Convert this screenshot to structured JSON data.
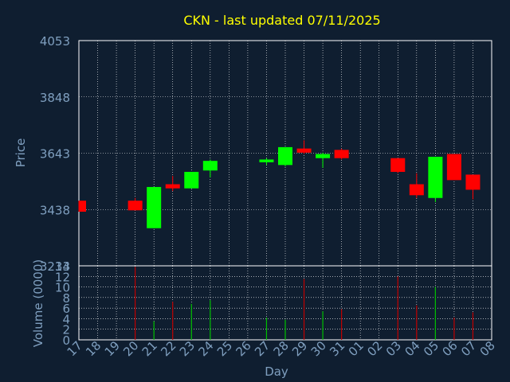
{
  "colors": {
    "background": "#0f1e30",
    "title": "#ffff00",
    "axis_text": "#7f9fbf",
    "frame": "#ffffff",
    "grid": "#ffffff",
    "up": "#00ff00",
    "down": "#ff0000",
    "volume_up": "#00c000",
    "volume_down": "#c00000"
  },
  "chart_data": [
    {
      "type": "candlestick",
      "title": "CKN - last updated 07/11/2025",
      "ylabel": "Price",
      "ylim": [
        3233,
        4053
      ],
      "yticks": [
        3233,
        3438,
        3643,
        3848,
        4053
      ],
      "grid": true,
      "x": [
        "17",
        "18",
        "19",
        "20",
        "21",
        "22",
        "23",
        "24",
        "25",
        "26",
        "27",
        "28",
        "29",
        "30",
        "31",
        "01",
        "02",
        "03",
        "04",
        "05",
        "06",
        "07",
        "08"
      ],
      "candles": [
        {
          "day": "17",
          "open": 3470,
          "high": 3470,
          "low": 3430,
          "close": 3430
        },
        {
          "day": "20",
          "open": 3470,
          "high": 3480,
          "low": 3435,
          "close": 3435
        },
        {
          "day": "21",
          "open": 3370,
          "high": 3520,
          "low": 3370,
          "close": 3520
        },
        {
          "day": "22",
          "open": 3530,
          "high": 3560,
          "low": 3505,
          "close": 3515
        },
        {
          "day": "23",
          "open": 3515,
          "high": 3575,
          "low": 3515,
          "close": 3575
        },
        {
          "day": "24",
          "open": 3580,
          "high": 3620,
          "low": 3555,
          "close": 3615
        },
        {
          "day": "27",
          "open": 3610,
          "high": 3625,
          "low": 3600,
          "close": 3620
        },
        {
          "day": "28",
          "open": 3600,
          "high": 3665,
          "low": 3595,
          "close": 3665
        },
        {
          "day": "29",
          "open": 3660,
          "high": 3690,
          "low": 3640,
          "close": 3645
        },
        {
          "day": "30",
          "open": 3625,
          "high": 3645,
          "low": 3590,
          "close": 3640
        },
        {
          "day": "31",
          "open": 3655,
          "high": 3660,
          "low": 3620,
          "close": 3625
        },
        {
          "day": "03",
          "open": 3625,
          "high": 3625,
          "low": 3570,
          "close": 3575
        },
        {
          "day": "04",
          "open": 3530,
          "high": 3570,
          "low": 3480,
          "close": 3490
        },
        {
          "day": "05",
          "open": 3480,
          "high": 3630,
          "low": 3465,
          "close": 3630
        },
        {
          "day": "06",
          "open": 3640,
          "high": 3640,
          "low": 3545,
          "close": 3545
        },
        {
          "day": "07",
          "open": 3565,
          "high": 3565,
          "low": 3475,
          "close": 3510
        }
      ]
    },
    {
      "type": "bar",
      "ylabel": "Volume (0000)",
      "xlabel": "Day",
      "ylim": [
        0,
        14
      ],
      "yticks": [
        0,
        2,
        4,
        6,
        8,
        10,
        12,
        14
      ],
      "grid": true,
      "categories": [
        "17",
        "18",
        "19",
        "20",
        "21",
        "22",
        "23",
        "24",
        "25",
        "26",
        "27",
        "28",
        "29",
        "30",
        "31",
        "01",
        "02",
        "03",
        "04",
        "05",
        "06",
        "07",
        "08"
      ],
      "bars": [
        {
          "day": "20",
          "value": 13.8,
          "direction": "down"
        },
        {
          "day": "21",
          "value": 3.5,
          "direction": "up"
        },
        {
          "day": "22",
          "value": 7.2,
          "direction": "down"
        },
        {
          "day": "23",
          "value": 6.8,
          "direction": "up"
        },
        {
          "day": "24",
          "value": 7.5,
          "direction": "up"
        },
        {
          "day": "27",
          "value": 4.2,
          "direction": "up"
        },
        {
          "day": "28",
          "value": 3.8,
          "direction": "up"
        },
        {
          "day": "29",
          "value": 11.5,
          "direction": "down"
        },
        {
          "day": "30",
          "value": 5.4,
          "direction": "up"
        },
        {
          "day": "31",
          "value": 5.8,
          "direction": "down"
        },
        {
          "day": "03",
          "value": 12.0,
          "direction": "down"
        },
        {
          "day": "04",
          "value": 6.5,
          "direction": "down"
        },
        {
          "day": "05",
          "value": 10.0,
          "direction": "up"
        },
        {
          "day": "06",
          "value": 4.2,
          "direction": "down"
        },
        {
          "day": "07",
          "value": 5.2,
          "direction": "down"
        }
      ]
    }
  ]
}
